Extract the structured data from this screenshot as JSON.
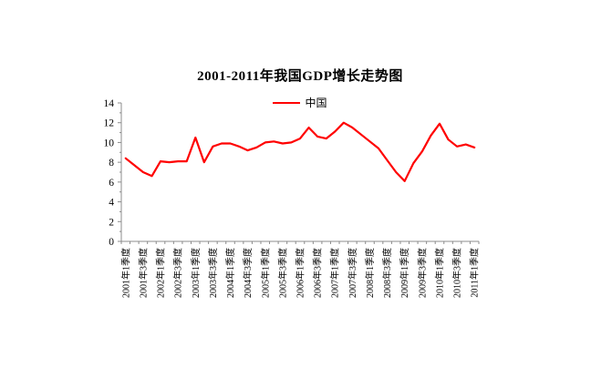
{
  "page": {
    "background": "#ffffff"
  },
  "chart_data": {
    "type": "line",
    "title": "2001-2011年我国GDP增长走势图",
    "xlabel": "",
    "ylabel": "",
    "ylim": [
      0,
      14
    ],
    "y_ticks": [
      0,
      2,
      4,
      6,
      8,
      10,
      12,
      14
    ],
    "grid": "off",
    "legend": {
      "position": "top-center",
      "entries": [
        {
          "label": "中国",
          "color": "#ff0000"
        }
      ]
    },
    "x": [
      "2001年1季度",
      "2001年2季度",
      "2001年3季度",
      "2001年4季度",
      "2002年1季度",
      "2002年2季度",
      "2002年3季度",
      "2002年4季度",
      "2003年1季度",
      "2003年2季度",
      "2003年3季度",
      "2003年4季度",
      "2004年1季度",
      "2004年2季度",
      "2004年3季度",
      "2004年4季度",
      "2005年1季度",
      "2005年2季度",
      "2005年3季度",
      "2005年4季度",
      "2006年1季度",
      "2006年2季度",
      "2006年3季度",
      "2006年4季度",
      "2007年1季度",
      "2007年2季度",
      "2007年3季度",
      "2007年4季度",
      "2008年1季度",
      "2008年2季度",
      "2008年3季度",
      "2008年4季度",
      "2009年1季度",
      "2009年2季度",
      "2009年3季度",
      "2009年4季度",
      "2010年1季度",
      "2010年2季度",
      "2010年3季度",
      "2010年4季度",
      "2011年1季度"
    ],
    "x_tick_labels_shown": [
      "2001年1季度",
      "2001年3季度",
      "2002年1季度",
      "2002年3季度",
      "2003年1季度",
      "2003年3季度",
      "2004年1季度",
      "2004年3季度",
      "2005年1季度",
      "2005年3季度",
      "2006年1季度",
      "2006年3季度",
      "2007年1季度",
      "2007年3季度",
      "2008年1季度",
      "2008年3季度",
      "2009年1季度",
      "2009年3季度",
      "2010年1季度",
      "2010年3季度",
      "2011年1季度"
    ],
    "series": [
      {
        "name": "中国",
        "color": "#ff0000",
        "values": [
          8.4,
          7.7,
          7.0,
          6.6,
          8.1,
          8.0,
          8.1,
          8.1,
          10.5,
          8.0,
          9.6,
          9.9,
          9.9,
          9.6,
          9.2,
          9.5,
          10.0,
          10.1,
          9.9,
          10.0,
          10.4,
          11.5,
          10.6,
          10.4,
          11.1,
          12.0,
          11.5,
          10.8,
          10.1,
          9.4,
          8.2,
          7.0,
          6.1,
          7.9,
          9.1,
          10.7,
          11.9,
          10.3,
          9.6,
          9.8,
          9.5
        ]
      }
    ],
    "axis_color": "#8c8c8c"
  }
}
